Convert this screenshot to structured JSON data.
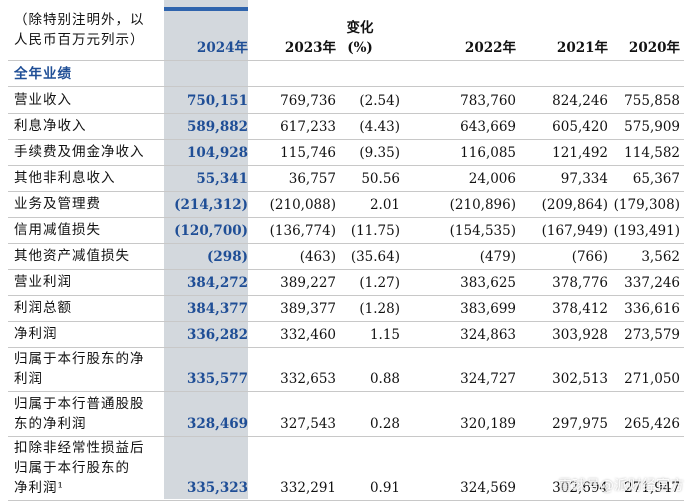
{
  "header": {
    "note": [
      "（除特别注明外，以",
      "人民币百万元列示）"
    ],
    "years": [
      "2024年",
      "2023年",
      "变化",
      "2022年",
      "2021年",
      "2020年"
    ],
    "change_unit": "(%)"
  },
  "section_title": "全年业绩",
  "rows": [
    {
      "label": [
        "营业收入"
      ],
      "values": [
        "750,151",
        "769,736",
        "(2.54)",
        "783,760",
        "824,246",
        "755,858"
      ]
    },
    {
      "label": [
        "利息净收入"
      ],
      "values": [
        "589,882",
        "617,233",
        "(4.43)",
        "643,669",
        "605,420",
        "575,909"
      ]
    },
    {
      "label": [
        "手续费及佣金净收入"
      ],
      "values": [
        "104,928",
        "115,746",
        "(9.35)",
        "116,085",
        "121,492",
        "114,582"
      ]
    },
    {
      "label": [
        "其他非利息收入"
      ],
      "values": [
        "55,341",
        "36,757",
        "50.56",
        "24,006",
        "97,334",
        "65,367"
      ]
    },
    {
      "label": [
        "业务及管理费"
      ],
      "values": [
        "(214,312)",
        "(210,088)",
        "2.01",
        "(210,896)",
        "(209,864)",
        "(179,308)"
      ]
    },
    {
      "label": [
        "信用减值损失"
      ],
      "values": [
        "(120,700)",
        "(136,774)",
        "(11.75)",
        "(154,535)",
        "(167,949)",
        "(193,491)"
      ]
    },
    {
      "label": [
        "其他资产减值损失"
      ],
      "values": [
        "(298)",
        "(463)",
        "(35.64)",
        "(479)",
        "(766)",
        "3,562"
      ]
    },
    {
      "label": [
        "营业利润"
      ],
      "values": [
        "384,272",
        "389,227",
        "(1.27)",
        "383,625",
        "378,776",
        "337,246"
      ]
    },
    {
      "label": [
        "利润总额"
      ],
      "values": [
        "384,377",
        "389,377",
        "(1.28)",
        "383,699",
        "378,412",
        "336,616"
      ]
    },
    {
      "label": [
        "净利润"
      ],
      "values": [
        "336,282",
        "332,460",
        "1.15",
        "324,863",
        "303,928",
        "273,579"
      ]
    },
    {
      "label": [
        "归属于本行股东的净",
        "利润"
      ],
      "values": [
        "335,577",
        "332,653",
        "0.88",
        "324,727",
        "302,513",
        "271,050"
      ]
    },
    {
      "label": [
        "归属于本行普通股股",
        "东的净利润"
      ],
      "values": [
        "328,469",
        "327,543",
        "0.28",
        "320,189",
        "297,975",
        "265,426"
      ]
    },
    {
      "label": [
        "扣除非经常性损益后",
        "归属于本行股东的",
        "净利润¹"
      ],
      "values": [
        "335,323",
        "332,291",
        "0.91",
        "324,569",
        "302,694",
        "271,947"
      ]
    }
  ],
  "watermark": "雪球号@派财经官方"
}
